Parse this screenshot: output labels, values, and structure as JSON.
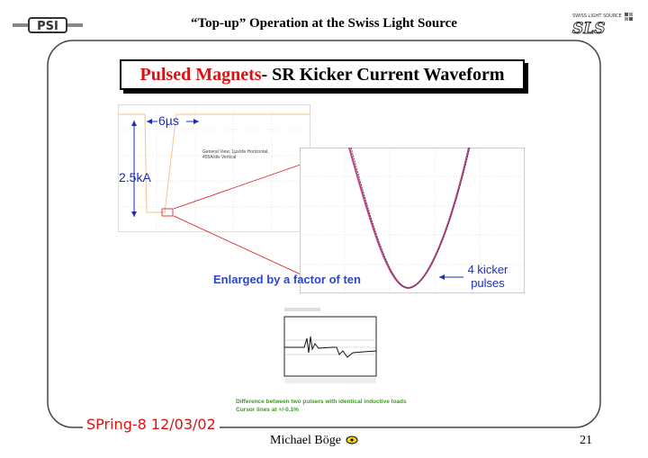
{
  "header": {
    "title": "“Top-up” Operation at the Swiss Light Source",
    "left_logo": "PSI",
    "right_logo_small": "SWISS LIGHT SOURCE",
    "right_logo": "SLS"
  },
  "slide": {
    "title_highlight": "Pulsed Magnets",
    "title_rest": " - SR Kicker Current Waveform"
  },
  "annotations": {
    "pulse_width": "6µs",
    "amplitude": "2.5kA",
    "enlarged": "Enlarged by a factor of ten",
    "kicker_pulses_line1": "4 kicker",
    "kicker_pulses_line2": "pulses",
    "general_view_line1": "General View, 1µs/div Horizontal,",
    "general_view_line2": "455A/div Vertical",
    "difference_line1": "Difference between two pulsers with identical inductive loads",
    "difference_line2": "Cursor lines at +/-0.1%"
  },
  "footer": {
    "conference": "SPring-8 12/03/02",
    "author": "Michael Böge",
    "page_number": "21"
  },
  "colors": {
    "accent_red": "#d11111",
    "label_blue": "#1a2dbf",
    "green_note": "#3c9a1e"
  }
}
